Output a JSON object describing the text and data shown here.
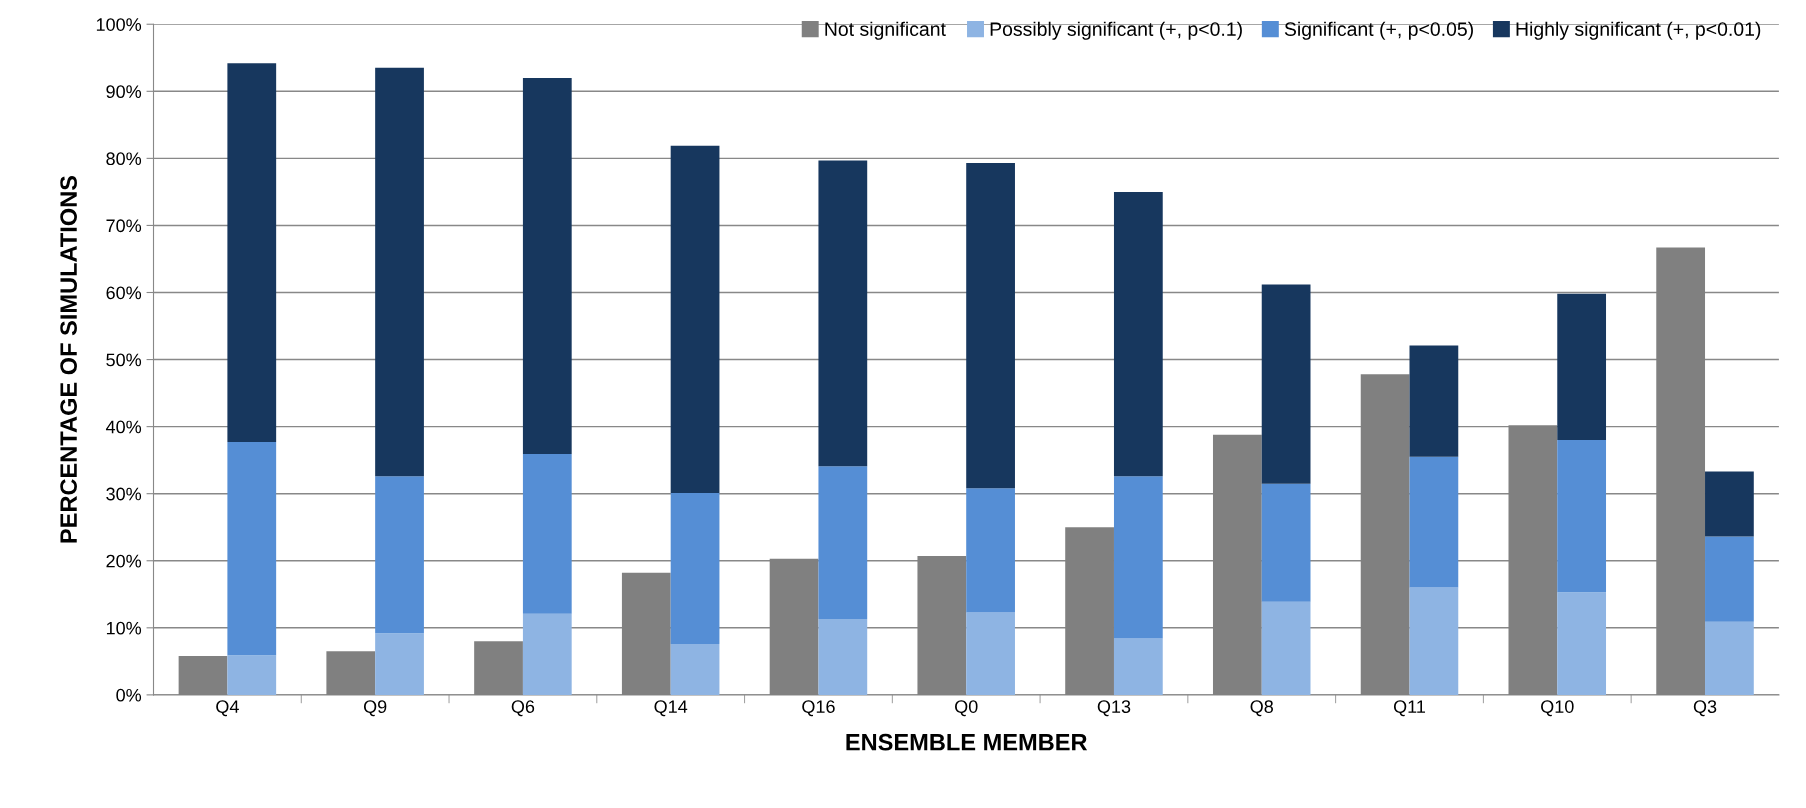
{
  "chart_data": [
    {
      "type": "bar",
      "xlabel": "ENSEMBLE MEMBER",
      "ylabel": "PERCENTAGE OF SIMULATIONS",
      "categories": [
        "Q4",
        "Q9",
        "Q6",
        "Q14",
        "Q16",
        "Q0",
        "Q13",
        "Q8",
        "Q11",
        "Q10",
        "Q3"
      ],
      "series": [
        {
          "name": "Not significant",
          "color": "#808080",
          "values": [
            5.8,
            6.5,
            8.0,
            18.2,
            20.3,
            20.7,
            25.0,
            38.8,
            47.8,
            40.2,
            66.7
          ]
        }
      ],
      "ylim": [
        0,
        100
      ],
      "yticks": [
        {
          "value": 0,
          "label": "0%"
        },
        {
          "value": 10,
          "label": "10%"
        },
        {
          "value": 20,
          "label": "20%"
        },
        {
          "value": 30,
          "label": "30%"
        },
        {
          "value": 40,
          "label": "40%"
        },
        {
          "value": 50,
          "label": "50%"
        },
        {
          "value": 60,
          "label": "60%"
        },
        {
          "value": 70,
          "label": "70%"
        },
        {
          "value": 80,
          "label": "80%"
        },
        {
          "value": 90,
          "label": "90%"
        },
        {
          "value": 100,
          "label": "100%"
        }
      ],
      "grid": "y",
      "legend": "top"
    },
    {
      "type": "bar",
      "stacked": true,
      "categories": [
        null,
        null,
        null,
        null,
        null,
        null,
        null,
        null,
        null,
        null,
        null
      ],
      "series": [
        {
          "name": "Possibly significant (+, p<0.1)",
          "color": "#8eb4e3",
          "values": [
            5.9,
            9.2,
            12.1,
            7.6,
            11.3,
            12.3,
            8.4,
            13.9,
            16.0,
            15.3,
            10.9
          ]
        },
        {
          "name": "Significant (+, p<0.05)",
          "color": "#558ed5",
          "values": [
            31.8,
            23.4,
            23.8,
            22.5,
            22.8,
            18.5,
            24.2,
            17.6,
            19.5,
            22.7,
            12.7
          ]
        },
        {
          "name": "Highly significant (+, p<0.01)",
          "color": "#17375e",
          "values": [
            56.5,
            60.9,
            56.1,
            51.8,
            45.6,
            48.5,
            42.4,
            29.7,
            16.6,
            21.8,
            9.7
          ]
        }
      ],
      "ylim": [
        0,
        100
      ],
      "legend": "top right"
    }
  ]
}
